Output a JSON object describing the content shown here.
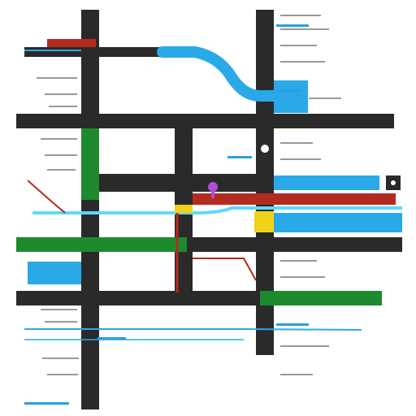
{
  "map": {
    "description_free": true,
    "colors": {
      "background": "#ffffff",
      "road_dark": "#2a2a2a",
      "route_green": "#1e8a2e",
      "route_blue": "#2aa9e8",
      "route_red": "#b52a1f",
      "route_cyan": "#5fd8ff",
      "highlight_yellow": "#f0d21a",
      "marker_purple": "#b04fd6",
      "label_gray": "#777777",
      "label_blue": "#2a9fe0",
      "label_green": "#1f8f3a"
    },
    "icons": {
      "pin": "location-pin-icon",
      "circle": "waypoint-circle-icon",
      "badge": "node-badge-icon"
    }
  }
}
